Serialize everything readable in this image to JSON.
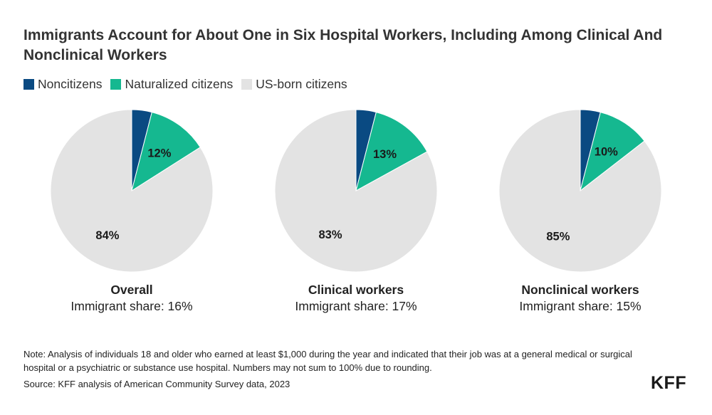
{
  "title": "Immigrants Account for About One in Six Hospital Workers, Including Among Clinical And Nonclinical Workers",
  "legend": [
    {
      "label": "Noncitizens",
      "color": "#0a4a82"
    },
    {
      "label": "Naturalized citizens",
      "color": "#15b890"
    },
    {
      "label": "US-born citizens",
      "color": "#e3e3e3"
    }
  ],
  "chart_data": [
    {
      "type": "pie",
      "title": "Overall",
      "subtitle": "Immigrant share: 16%",
      "slices": [
        {
          "name": "Noncitizens",
          "value": 4,
          "label": ""
        },
        {
          "name": "Naturalized citizens",
          "value": 12,
          "label": "12%"
        },
        {
          "name": "US-born citizens",
          "value": 84,
          "label": "84%"
        }
      ]
    },
    {
      "type": "pie",
      "title": "Clinical workers",
      "subtitle": "Immigrant share: 17%",
      "slices": [
        {
          "name": "Noncitizens",
          "value": 4,
          "label": ""
        },
        {
          "name": "Naturalized citizens",
          "value": 13,
          "label": "13%"
        },
        {
          "name": "US-born citizens",
          "value": 83,
          "label": "83%"
        }
      ]
    },
    {
      "type": "pie",
      "title": "Nonclinical workers",
      "subtitle": "Immigrant share: 15%",
      "slices": [
        {
          "name": "Noncitizens",
          "value": 4,
          "label": ""
        },
        {
          "name": "Naturalized citizens",
          "value": 10.5,
          "label": "10%"
        },
        {
          "name": "US-born citizens",
          "value": 85.5,
          "label": "85%"
        }
      ]
    }
  ],
  "note": "Note: Analysis of individuals 18 and older who earned at least $1,000 during the year and indicated that their job was at a general medical or surgical hospital or a psychiatric or substance use hospital. Numbers may not sum to 100% due to rounding.",
  "source": "Source: KFF analysis of American Community Survey data, 2023",
  "logo": "KFF"
}
